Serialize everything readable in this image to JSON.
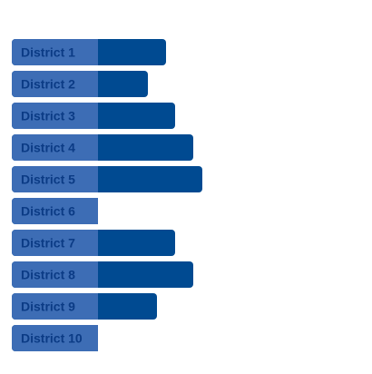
{
  "chart_data": {
    "type": "bar",
    "orientation": "horizontal",
    "categories": [
      "District 1",
      "District 2",
      "District 3",
      "District 4",
      "District 5",
      "District 6",
      "District 7",
      "District 8",
      "District 9",
      "District 10"
    ],
    "values": [
      17,
      15,
      18,
      20,
      21,
      9.5,
      18,
      20,
      16,
      8
    ],
    "xlim": [
      0,
      30
    ],
    "grid": false,
    "legend": "none",
    "colors": {
      "bar": "#004a91",
      "label_background": "#3d6db5",
      "label_text": "#0b3b85"
    }
  }
}
